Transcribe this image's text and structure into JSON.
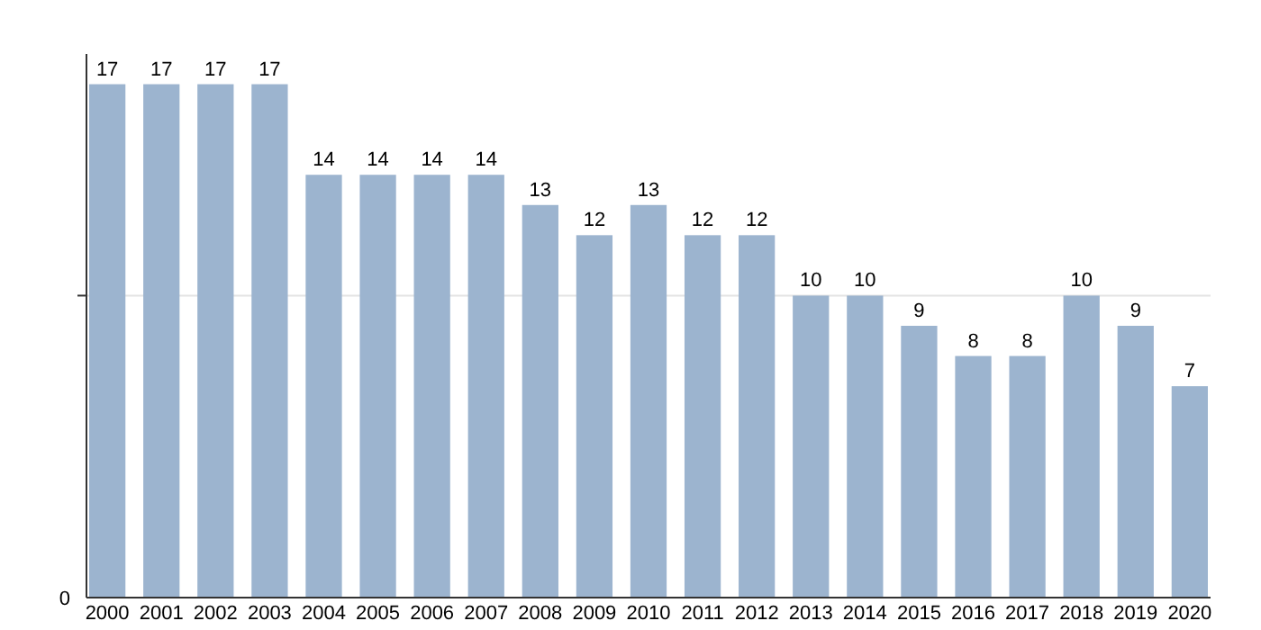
{
  "chart_data": {
    "type": "bar",
    "categories": [
      "2000",
      "2001",
      "2002",
      "2003",
      "2004",
      "2005",
      "2006",
      "2007",
      "2008",
      "2009",
      "2010",
      "2011",
      "2012",
      "2013",
      "2014",
      "2015",
      "2016",
      "2017",
      "2018",
      "2019",
      "2020"
    ],
    "values": [
      17,
      17,
      17,
      17,
      14,
      14,
      14,
      14,
      13,
      12,
      13,
      12,
      12,
      10,
      10,
      9,
      8,
      8,
      10,
      9,
      7
    ],
    "color": "#9cb4cf",
    "ylim": [
      0,
      18
    ],
    "annotations": [
      "0"
    ],
    "ref_lines": [
      {
        "axis": "y",
        "value": 10,
        "color": "#e4e4e4"
      }
    ],
    "data_labels": true
  }
}
